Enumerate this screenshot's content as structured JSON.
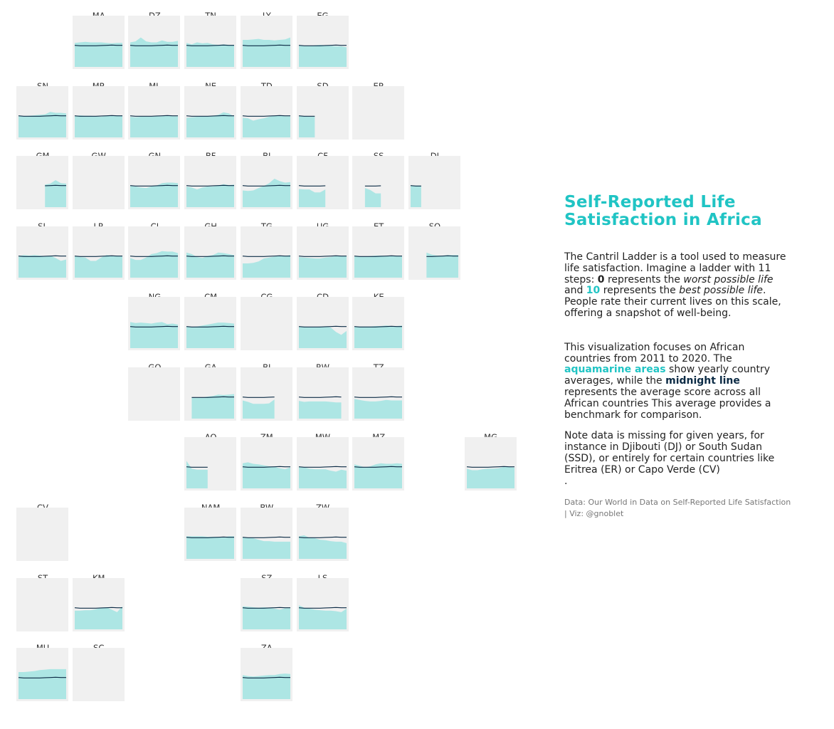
{
  "colors": {
    "area": "#ade6e4",
    "line": "#0c2b45",
    "panel_bg": "#f0f0f0",
    "title": "#20c4c4"
  },
  "title_line1": "Self-Reported Life",
  "title_line2": "Satisfaction in Africa",
  "para1": {
    "a": "The Cantril Ladder is a tool used to measure life satisfaction. Imagine a ladder with 11 steps: ",
    "b": "0",
    "c": " represents the ",
    "d": "worst possible life",
    "e": " and ",
    "f": "10",
    "g": " represents the ",
    "h": "best possible life",
    "i": ". People rate their current lives on this scale, offering a snapshot of well-being."
  },
  "para2": {
    "a": "This visualization focuses on African countries from 2011 to 2020. The ",
    "b": "aquamarine areas",
    "c": " show yearly country averages, while the ",
    "d": "midnight line",
    "e": " represents the average score across all African countries This average provides a benchmark for comparison."
  },
  "para3": "Note data is missing for given years, for instance in Djibouti (DJ) or South Sudan (SSD), or entirely for certain countries like Eritrea (ER) or Capo Verde (CV)\n.",
  "source": "Data: Our World in Data on Self-Reported Life Satisfaction | Viz: @gnoblet",
  "chart_data": {
    "type": "area",
    "x": [
      2011,
      2012,
      2013,
      2014,
      2015,
      2016,
      2017,
      2018,
      2019,
      2020
    ],
    "ylim": [
      0,
      10
    ],
    "average": [
      4.4,
      4.3,
      4.3,
      4.3,
      4.3,
      4.35,
      4.4,
      4.45,
      4.4,
      4.4
    ],
    "countries": [
      {
        "code": "MA",
        "col": 1,
        "row": 0,
        "values": [
          4.9,
          5.0,
          5.1,
          5.0,
          5.0,
          5.0,
          4.9,
          4.8,
          4.9,
          4.9
        ]
      },
      {
        "code": "DZ",
        "col": 2,
        "row": 0,
        "values": [
          5.0,
          5.2,
          6.0,
          5.2,
          5.0,
          5.0,
          5.4,
          5.1,
          5.1,
          5.3
        ]
      },
      {
        "code": "TN",
        "col": 3,
        "row": 0,
        "values": [
          4.9,
          4.6,
          5.0,
          4.8,
          4.9,
          4.6,
          4.5,
          4.6,
          4.5,
          4.5
        ]
      },
      {
        "code": "LY",
        "col": 4,
        "row": 0,
        "values": [
          5.5,
          5.5,
          5.6,
          5.7,
          5.5,
          5.5,
          5.4,
          5.5,
          5.6,
          6.0
        ]
      },
      {
        "code": "EG",
        "col": 5,
        "row": 0,
        "values": [
          4.4,
          4.2,
          4.2,
          4.4,
          4.5,
          4.4,
          4.3,
          4.2,
          4.2,
          4.0
        ]
      },
      {
        "code": "SN",
        "col": 0,
        "row": 1,
        "values": [
          4.5,
          4.3,
          4.4,
          4.5,
          4.6,
          4.7,
          5.2,
          5.0,
          5.0,
          4.9
        ]
      },
      {
        "code": "MR",
        "col": 1,
        "row": 1,
        "values": [
          4.3,
          4.5,
          4.4,
          4.4,
          4.3,
          4.2,
          4.4,
          4.5,
          4.5,
          4.4
        ]
      },
      {
        "code": "ML",
        "col": 2,
        "row": 1,
        "values": [
          4.2,
          4.1,
          4.2,
          4.2,
          4.2,
          4.3,
          4.3,
          4.5,
          4.3,
          4.3
        ]
      },
      {
        "code": "NE",
        "col": 3,
        "row": 1,
        "values": [
          4.0,
          4.1,
          4.2,
          4.3,
          4.3,
          4.4,
          4.6,
          5.1,
          4.9,
          4.3
        ]
      },
      {
        "code": "TD",
        "col": 4,
        "row": 1,
        "values": [
          4.0,
          3.9,
          3.4,
          3.7,
          3.9,
          4.2,
          4.4,
          4.5,
          4.3,
          4.3
        ]
      },
      {
        "code": "SD",
        "col": 5,
        "row": 1,
        "values": [
          4.4,
          4.3,
          4.2,
          4.2,
          null,
          null,
          null,
          null,
          null,
          null
        ]
      },
      {
        "code": "ER",
        "col": 6,
        "row": 1,
        "values": []
      },
      {
        "code": "GM",
        "col": 0,
        "row": 2,
        "values": [
          null,
          null,
          null,
          null,
          null,
          4.6,
          4.8,
          5.5,
          4.9,
          4.8
        ]
      },
      {
        "code": "GW",
        "col": 1,
        "row": 2,
        "values": []
      },
      {
        "code": "GN",
        "col": 2,
        "row": 2,
        "values": [
          4.3,
          4.2,
          4.0,
          3.9,
          4.2,
          4.4,
          4.9,
          5.0,
          5.0,
          4.9
        ]
      },
      {
        "code": "BF",
        "col": 3,
        "row": 2,
        "values": [
          4.2,
          4.0,
          3.6,
          4.0,
          4.2,
          4.2,
          4.4,
          4.7,
          4.5,
          4.6
        ]
      },
      {
        "code": "BJ",
        "col": 4,
        "row": 2,
        "values": [
          3.4,
          3.3,
          3.4,
          3.9,
          4.3,
          4.9,
          5.8,
          5.3,
          5.0,
          5.1
        ]
      },
      {
        "code": "CF",
        "col": 5,
        "row": 2,
        "values": [
          3.7,
          3.6,
          3.6,
          3.0,
          3.0,
          3.6,
          null,
          null,
          null,
          null
        ]
      },
      {
        "code": "SS",
        "col": 6,
        "row": 2,
        "values": [
          null,
          null,
          3.9,
          3.5,
          2.8,
          2.8,
          null,
          null,
          null,
          null
        ]
      },
      {
        "code": "DJ",
        "col": 7,
        "row": 2,
        "values": [
          4.4,
          4.4,
          4.4,
          null,
          null,
          null,
          null,
          null,
          null,
          null
        ]
      },
      {
        "code": "SL",
        "col": 0,
        "row": 3,
        "values": [
          4.4,
          4.6,
          4.5,
          4.6,
          4.5,
          4.4,
          4.5,
          4.0,
          3.4,
          3.7
        ]
      },
      {
        "code": "LR",
        "col": 1,
        "row": 3,
        "values": [
          4.4,
          4.2,
          4.1,
          3.4,
          3.4,
          4.1,
          4.6,
          4.5,
          4.5,
          4.3
        ]
      },
      {
        "code": "CI",
        "col": 2,
        "row": 3,
        "values": [
          4.0,
          3.6,
          3.6,
          4.1,
          4.8,
          5.0,
          5.4,
          5.3,
          5.3,
          5.0
        ]
      },
      {
        "code": "GH",
        "col": 3,
        "row": 3,
        "values": [
          5.1,
          4.8,
          4.2,
          4.0,
          4.4,
          4.6,
          5.1,
          5.0,
          4.8,
          4.6
        ]
      },
      {
        "code": "TG",
        "col": 4,
        "row": 3,
        "values": [
          2.9,
          2.9,
          3.0,
          3.3,
          3.9,
          4.1,
          4.3,
          4.4,
          4.4,
          4.6
        ]
      },
      {
        "code": "UG",
        "col": 5,
        "row": 3,
        "values": [
          4.2,
          4.1,
          4.0,
          3.9,
          3.9,
          4.1,
          4.2,
          4.4,
          4.4,
          4.4
        ]
      },
      {
        "code": "ET",
        "col": 6,
        "row": 3,
        "values": [
          4.3,
          4.3,
          4.3,
          4.4,
          4.5,
          4.5,
          4.4,
          4.4,
          4.4,
          4.4
        ]
      },
      {
        "code": "SO",
        "col": 7,
        "row": 3,
        "values": [
          null,
          null,
          null,
          5.1,
          4.7,
          4.5,
          4.5,
          4.6,
          4.6,
          4.6
        ]
      },
      {
        "code": "NG",
        "col": 2,
        "row": 4,
        "values": [
          5.3,
          5.1,
          5.2,
          5.1,
          5.0,
          5.2,
          5.3,
          4.9,
          5.0,
          4.8
        ]
      },
      {
        "code": "CM",
        "col": 3,
        "row": 4,
        "values": [
          4.4,
          4.3,
          4.4,
          4.6,
          4.8,
          5.0,
          5.2,
          5.2,
          5.1,
          5.0
        ]
      },
      {
        "code": "CG",
        "col": 4,
        "row": 4,
        "values": []
      },
      {
        "code": "CD",
        "col": 5,
        "row": 4,
        "values": [
          4.4,
          4.4,
          4.3,
          4.3,
          4.4,
          4.4,
          4.2,
          3.3,
          2.7,
          3.5
        ]
      },
      {
        "code": "KE",
        "col": 6,
        "row": 4,
        "values": [
          4.3,
          4.4,
          4.4,
          4.4,
          4.5,
          4.5,
          4.6,
          4.5,
          4.5,
          4.6
        ]
      },
      {
        "code": "GQ",
        "col": 2,
        "row": 5,
        "values": []
      },
      {
        "code": "GA",
        "col": 3,
        "row": 5,
        "values": [
          null,
          4.3,
          4.2,
          4.3,
          4.5,
          4.6,
          4.9,
          4.8,
          4.9,
          5.0
        ]
      },
      {
        "code": "BI",
        "col": 4,
        "row": 5,
        "values": [
          3.7,
          3.4,
          3.0,
          3.0,
          3.0,
          3.1,
          3.9,
          null,
          null,
          null
        ]
      },
      {
        "code": "RW",
        "col": 5,
        "row": 5,
        "values": [
          3.6,
          3.4,
          3.5,
          3.5,
          3.5,
          3.5,
          3.4,
          3.3,
          3.3,
          null
        ]
      },
      {
        "code": "TZ",
        "col": 6,
        "row": 5,
        "values": [
          4.0,
          3.8,
          3.6,
          3.5,
          3.5,
          3.6,
          3.8,
          3.7,
          3.7,
          3.7
        ]
      },
      {
        "code": "AO",
        "col": 3,
        "row": 6,
        "values": [
          5.6,
          4.0,
          3.8,
          3.8,
          3.8,
          null,
          null,
          null,
          null,
          null
        ]
      },
      {
        "code": "ZM",
        "col": 4,
        "row": 6,
        "values": [
          5.1,
          5.3,
          5.0,
          4.9,
          4.7,
          4.5,
          4.4,
          4.1,
          3.9,
          4.3
        ]
      },
      {
        "code": "MW",
        "col": 5,
        "row": 6,
        "values": [
          4.4,
          4.3,
          4.0,
          3.9,
          3.9,
          3.9,
          3.6,
          3.4,
          3.8,
          3.6
        ]
      },
      {
        "code": "MZ",
        "col": 6,
        "row": 6,
        "values": [
          4.9,
          4.6,
          4.3,
          4.5,
          4.9,
          5.1,
          5.0,
          5.0,
          5.1,
          5.0
        ]
      },
      {
        "code": "MG",
        "col": 8,
        "row": 6,
        "values": [
          4.0,
          3.7,
          3.7,
          3.9,
          4.0,
          4.0,
          4.1,
          4.4,
          4.4,
          4.2
        ]
      },
      {
        "code": "CV",
        "col": 0,
        "row": 7,
        "values": []
      },
      {
        "code": "NAM",
        "col": 3,
        "row": 7,
        "values": [
          4.6,
          4.6,
          4.6,
          4.6,
          4.5,
          4.5,
          4.5,
          4.4,
          4.6,
          4.6
        ]
      },
      {
        "code": "BW",
        "col": 4,
        "row": 7,
        "values": [
          4.4,
          4.3,
          4.2,
          3.9,
          3.6,
          3.6,
          3.5,
          3.5,
          3.5,
          3.5
        ]
      },
      {
        "code": "ZW",
        "col": 5,
        "row": 7,
        "values": [
          4.6,
          4.8,
          4.3,
          4.2,
          3.9,
          3.8,
          3.6,
          3.5,
          3.5,
          3.2
        ]
      },
      {
        "code": "ST",
        "col": 0,
        "row": 8,
        "values": []
      },
      {
        "code": "KM",
        "col": 1,
        "row": 8,
        "values": [
          3.8,
          3.8,
          3.9,
          3.9,
          4.1,
          4.4,
          4.5,
          4.0,
          3.5,
          4.7
        ]
      },
      {
        "code": "SZ",
        "col": 4,
        "row": 8,
        "values": [
          4.7,
          4.6,
          4.5,
          4.4,
          4.5,
          4.4,
          4.2,
          4.0,
          4.3,
          4.3
        ]
      },
      {
        "code": "LS",
        "col": 5,
        "row": 8,
        "values": [
          4.9,
          4.4,
          4.2,
          4.0,
          3.9,
          3.8,
          3.8,
          3.7,
          3.5,
          4.2
        ]
      },
      {
        "code": "MU",
        "col": 0,
        "row": 9,
        "values": [
          5.5,
          5.5,
          5.6,
          5.7,
          5.9,
          6.0,
          6.1,
          6.1,
          6.1,
          6.1
        ]
      },
      {
        "code": "SC",
        "col": 1,
        "row": 9,
        "values": []
      },
      {
        "code": "ZA",
        "col": 4,
        "row": 9,
        "values": [
          4.9,
          4.7,
          4.6,
          4.7,
          4.8,
          4.9,
          4.9,
          5.1,
          5.2,
          5.1
        ]
      }
    ]
  }
}
